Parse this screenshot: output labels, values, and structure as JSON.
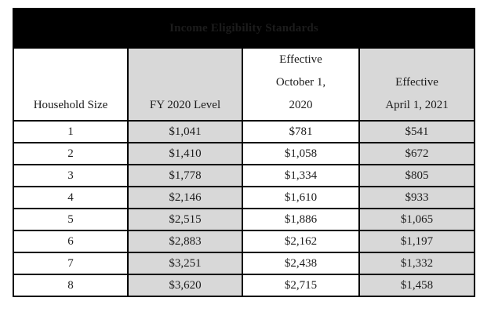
{
  "title": "Income Eligibility Standards",
  "table": {
    "columns": [
      {
        "label": "Household Size",
        "lines": [
          "Household Size"
        ],
        "shaded": false
      },
      {
        "label": "FY 2020 Level",
        "lines": [
          "FY 2020 Level"
        ],
        "shaded": true
      },
      {
        "label": "Effective October 1, 2020",
        "lines": [
          "Effective",
          "October 1,",
          "2020"
        ],
        "shaded": false
      },
      {
        "label": "Effective April 1, 2021",
        "lines": [
          "Effective",
          "April 1, 2021"
        ],
        "shaded": true
      }
    ],
    "rows": [
      [
        "1",
        "$1,041",
        "$781",
        "$541"
      ],
      [
        "2",
        "$1,410",
        "$1,058",
        "$672"
      ],
      [
        "3",
        "$1,778",
        "$1,334",
        "$805"
      ],
      [
        "4",
        "$2,146",
        "$1,610",
        "$933"
      ],
      [
        "5",
        "$2,515",
        "$1,886",
        "$1,065"
      ],
      [
        "6",
        "$2,883",
        "$2,162",
        "$1,197"
      ],
      [
        "7",
        "$3,251",
        "$2,438",
        "$1,332"
      ],
      [
        "8",
        "$3,620",
        "$2,715",
        "$1,458"
      ]
    ]
  },
  "colors": {
    "title_bg": "#000000",
    "title_text": "#ffffff",
    "shaded_column": "#d8d8d8",
    "border": "#000000",
    "text": "#1c1c1c",
    "page_bg": "#ffffff"
  }
}
